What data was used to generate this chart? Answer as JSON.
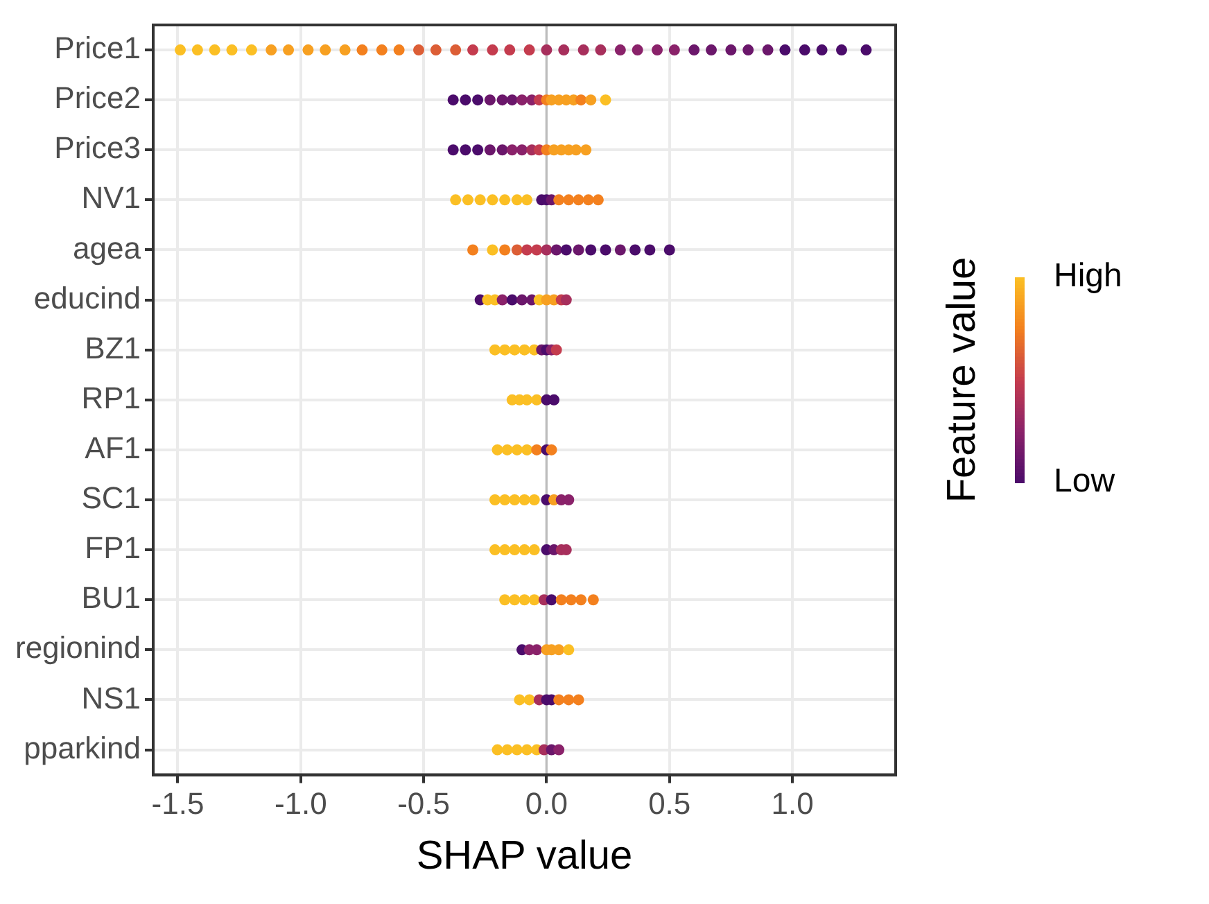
{
  "chart_data": {
    "type": "scatter",
    "orientation": "horizontal",
    "xlabel": "SHAP value",
    "clabel": "Feature value",
    "categories": [
      "Price1",
      "Price2",
      "Price3",
      "NV1",
      "agea",
      "educind",
      "BZ1",
      "RP1",
      "AF1",
      "SC1",
      "FP1",
      "BU1",
      "regionind",
      "NS1",
      "pparkind"
    ],
    "xlim": [
      -1.6,
      1.42
    ],
    "xticks": [
      {
        "value": -1.5,
        "label": "-1.5"
      },
      {
        "value": -1,
        "label": "-1.0"
      },
      {
        "value": -0.5,
        "label": "-0.5"
      },
      {
        "value": 0,
        "label": "0.0"
      },
      {
        "value": 0.5,
        "label": "0.5"
      },
      {
        "value": 1,
        "label": "1.0"
      }
    ],
    "clim": [
      0,
      1
    ],
    "cticks": [
      {
        "value": 0,
        "label": "Low"
      },
      {
        "value": 1,
        "label": "High"
      }
    ],
    "grid": true,
    "legend": false,
    "marker": "circle",
    "ref_lines": [
      {
        "axis": "x",
        "value": 0,
        "color": "#bdbdbd"
      }
    ],
    "series": [
      {
        "x": [
          "Price1",
          "Price1",
          "Price1",
          "Price1",
          "Price1",
          "Price1",
          "Price1",
          "Price1",
          "Price1",
          "Price1",
          "Price1",
          "Price1",
          "Price1",
          "Price1",
          "Price1",
          "Price1",
          "Price1",
          "Price1",
          "Price1",
          "Price1",
          "Price1",
          "Price1",
          "Price1",
          "Price1",
          "Price1",
          "Price1",
          "Price1",
          "Price1",
          "Price1",
          "Price1",
          "Price1",
          "Price1",
          "Price1",
          "Price1",
          "Price1",
          "Price1",
          "Price1",
          "Price1"
        ],
        "values": [
          -1.49,
          -1.42,
          -1.35,
          -1.28,
          -1.2,
          -1.12,
          -1.05,
          -0.97,
          -0.9,
          -0.82,
          -0.75,
          -0.67,
          -0.6,
          -0.52,
          -0.45,
          -0.37,
          -0.3,
          -0.22,
          -0.15,
          -0.07,
          0,
          0.07,
          0.15,
          0.22,
          0.3,
          0.37,
          0.45,
          0.52,
          0.6,
          0.67,
          0.75,
          0.82,
          0.9,
          0.97,
          1.05,
          1.12,
          1.2,
          1.3
        ],
        "colors": [
          "#fbbf24",
          "#fbbf24",
          "#fbbf24",
          "#fbbf24",
          "#fbbf24",
          "#f7a021",
          "#f7a021",
          "#f7a021",
          "#f7a021",
          "#f7a021",
          "#f3801e",
          "#f3801e",
          "#f3801e",
          "#dc5e36",
          "#dc5e36",
          "#dc5e36",
          "#c43c4e",
          "#c43c4e",
          "#c43c4e",
          "#c43c4e",
          "#a72f5c",
          "#a72f5c",
          "#a72f5c",
          "#a72f5c",
          "#8a226a",
          "#8a226a",
          "#8a226a",
          "#8a226a",
          "#6b176b",
          "#6b176b",
          "#6b176b",
          "#6b176b",
          "#6b176b",
          "#4b0c6b",
          "#4b0c6b",
          "#4b0c6b",
          "#4b0c6b",
          "#4b0c6b"
        ]
      },
      {
        "x": [
          "Price2",
          "Price2",
          "Price2",
          "Price2",
          "Price2",
          "Price2",
          "Price2",
          "Price2",
          "Price2",
          "Price2",
          "Price2",
          "Price2",
          "Price2",
          "Price2",
          "Price2",
          "Price2",
          "Price2"
        ],
        "values": [
          -0.38,
          -0.33,
          -0.28,
          -0.23,
          -0.18,
          -0.14,
          -0.1,
          -0.06,
          -0.03,
          0,
          0.02,
          0.05,
          0.08,
          0.11,
          0.14,
          0.18,
          0.24
        ],
        "colors": [
          "#4b0c6b",
          "#4b0c6b",
          "#4b0c6b",
          "#6b176b",
          "#6b176b",
          "#6b176b",
          "#8a226a",
          "#8a226a",
          "#c43c4e",
          "#f3801e",
          "#f7a021",
          "#f7a021",
          "#f7a021",
          "#f7a021",
          "#f3801e",
          "#f7a021",
          "#fbbf24"
        ]
      },
      {
        "x": [
          "Price3",
          "Price3",
          "Price3",
          "Price3",
          "Price3",
          "Price3",
          "Price3",
          "Price3",
          "Price3",
          "Price3",
          "Price3",
          "Price3",
          "Price3",
          "Price3",
          "Price3"
        ],
        "values": [
          -0.38,
          -0.33,
          -0.28,
          -0.23,
          -0.18,
          -0.14,
          -0.1,
          -0.06,
          -0.03,
          0,
          0.03,
          0.06,
          0.09,
          0.12,
          0.16
        ],
        "colors": [
          "#4b0c6b",
          "#4b0c6b",
          "#4b0c6b",
          "#6b176b",
          "#6b176b",
          "#8a226a",
          "#8a226a",
          "#a72f5c",
          "#c43c4e",
          "#f3801e",
          "#f7a021",
          "#f7a021",
          "#f7a021",
          "#f7a021",
          "#f7a021"
        ]
      },
      {
        "x": [
          "NV1",
          "NV1",
          "NV1",
          "NV1",
          "NV1",
          "NV1",
          "NV1",
          "NV1",
          "NV1",
          "NV1",
          "NV1",
          "NV1",
          "NV1",
          "NV1",
          "NV1"
        ],
        "values": [
          -0.37,
          -0.32,
          -0.27,
          -0.22,
          -0.17,
          -0.12,
          -0.08,
          -0.02,
          0,
          0.02,
          0.05,
          0.09,
          0.13,
          0.17,
          0.21
        ],
        "colors": [
          "#fbbf24",
          "#fbbf24",
          "#fbbf24",
          "#fbbf24",
          "#fbbf24",
          "#fbbf24",
          "#fbbf24",
          "#4b0c6b",
          "#4b0c6b",
          "#6b176b",
          "#f3801e",
          "#f3801e",
          "#f3801e",
          "#f3801e",
          "#f3801e"
        ]
      },
      {
        "x": [
          "agea",
          "agea",
          "agea",
          "agea",
          "agea",
          "agea",
          "agea",
          "agea",
          "agea",
          "agea",
          "agea",
          "agea",
          "agea",
          "agea",
          "agea",
          "agea"
        ],
        "values": [
          -0.3,
          -0.22,
          -0.17,
          -0.12,
          -0.08,
          -0.04,
          0,
          0.04,
          0.08,
          0.13,
          0.18,
          0.24,
          0.3,
          0.36,
          0.42,
          0.5
        ],
        "colors": [
          "#f3801e",
          "#fbbf24",
          "#f3801e",
          "#dc5e36",
          "#c43c4e",
          "#c43c4e",
          "#a72f5c",
          "#6b176b",
          "#4b0c6b",
          "#6b176b",
          "#4b0c6b",
          "#4b0c6b",
          "#6b176b",
          "#4b0c6b",
          "#4b0c6b",
          "#4b0c6b"
        ]
      },
      {
        "x": [
          "educind",
          "educind",
          "educind",
          "educind",
          "educind",
          "educind",
          "educind",
          "educind",
          "educind",
          "educind",
          "educind",
          "educind"
        ],
        "values": [
          -0.27,
          -0.24,
          -0.21,
          -0.18,
          -0.14,
          -0.1,
          -0.06,
          -0.03,
          0,
          0.03,
          0.06,
          0.08
        ],
        "colors": [
          "#4b0c6b",
          "#fbbf24",
          "#fbbf24",
          "#8a226a",
          "#4b0c6b",
          "#6b176b",
          "#6b176b",
          "#fbbf24",
          "#f7a021",
          "#f7a021",
          "#c43c4e",
          "#a72f5c"
        ]
      },
      {
        "x": [
          "BZ1",
          "BZ1",
          "BZ1",
          "BZ1",
          "BZ1",
          "BZ1",
          "BZ1",
          "BZ1",
          "BZ1"
        ],
        "values": [
          -0.21,
          -0.17,
          -0.13,
          -0.09,
          -0.05,
          -0.02,
          0,
          0.02,
          0.04
        ],
        "colors": [
          "#fbbf24",
          "#fbbf24",
          "#fbbf24",
          "#fbbf24",
          "#fbbf24",
          "#6b176b",
          "#4b0c6b",
          "#8a226a",
          "#c43c4e"
        ]
      },
      {
        "x": [
          "RP1",
          "RP1",
          "RP1",
          "RP1",
          "RP1",
          "RP1"
        ],
        "values": [
          -0.14,
          -0.11,
          -0.08,
          -0.04,
          0,
          0.03
        ],
        "colors": [
          "#fbbf24",
          "#fbbf24",
          "#fbbf24",
          "#fbbf24",
          "#4b0c6b",
          "#4b0c6b"
        ]
      },
      {
        "x": [
          "AF1",
          "AF1",
          "AF1",
          "AF1",
          "AF1",
          "AF1",
          "AF1"
        ],
        "values": [
          -0.2,
          -0.16,
          -0.12,
          -0.08,
          -0.04,
          0,
          0.02
        ],
        "colors": [
          "#fbbf24",
          "#fbbf24",
          "#fbbf24",
          "#fbbf24",
          "#f3801e",
          "#4b0c6b",
          "#f3801e"
        ]
      },
      {
        "x": [
          "SC1",
          "SC1",
          "SC1",
          "SC1",
          "SC1",
          "SC1",
          "SC1",
          "SC1",
          "SC1"
        ],
        "values": [
          -0.21,
          -0.17,
          -0.13,
          -0.09,
          -0.05,
          0,
          0.03,
          0.06,
          0.09
        ],
        "colors": [
          "#fbbf24",
          "#fbbf24",
          "#fbbf24",
          "#fbbf24",
          "#fbbf24",
          "#4b0c6b",
          "#f7a021",
          "#8a226a",
          "#8a226a"
        ]
      },
      {
        "x": [
          "FP1",
          "FP1",
          "FP1",
          "FP1",
          "FP1",
          "FP1",
          "FP1",
          "FP1",
          "FP1"
        ],
        "values": [
          -0.21,
          -0.17,
          -0.13,
          -0.09,
          -0.05,
          0,
          0.03,
          0.06,
          0.08
        ],
        "colors": [
          "#fbbf24",
          "#fbbf24",
          "#fbbf24",
          "#fbbf24",
          "#fbbf24",
          "#4b0c6b",
          "#6b176b",
          "#a72f5c",
          "#a72f5c"
        ]
      },
      {
        "x": [
          "BU1",
          "BU1",
          "BU1",
          "BU1",
          "BU1",
          "BU1",
          "BU1",
          "BU1",
          "BU1",
          "BU1"
        ],
        "values": [
          -0.17,
          -0.13,
          -0.09,
          -0.05,
          -0.01,
          0.02,
          0.06,
          0.1,
          0.14,
          0.19
        ],
        "colors": [
          "#fbbf24",
          "#fbbf24",
          "#fbbf24",
          "#fbbf24",
          "#a72f5c",
          "#4b0c6b",
          "#f3801e",
          "#f3801e",
          "#f3801e",
          "#f3801e"
        ]
      },
      {
        "x": [
          "regionind",
          "regionind",
          "regionind",
          "regionind",
          "regionind",
          "regionind",
          "regionind"
        ],
        "values": [
          -0.1,
          -0.07,
          -0.04,
          0,
          0.02,
          0.05,
          0.09
        ],
        "colors": [
          "#4b0c6b",
          "#8a226a",
          "#8a226a",
          "#f7a021",
          "#f7a021",
          "#f7a021",
          "#fbbf24"
        ]
      },
      {
        "x": [
          "NS1",
          "NS1",
          "NS1",
          "NS1",
          "NS1",
          "NS1",
          "NS1",
          "NS1"
        ],
        "values": [
          -0.11,
          -0.07,
          -0.03,
          0,
          0.02,
          0.05,
          0.09,
          0.13
        ],
        "colors": [
          "#fbbf24",
          "#fbbf24",
          "#a72f5c",
          "#4b0c6b",
          "#4b0c6b",
          "#f3801e",
          "#f3801e",
          "#f3801e"
        ]
      },
      {
        "x": [
          "pparkind",
          "pparkind",
          "pparkind",
          "pparkind",
          "pparkind",
          "pparkind",
          "pparkind",
          "pparkind"
        ],
        "values": [
          -0.2,
          -0.16,
          -0.12,
          -0.08,
          -0.04,
          -0.01,
          0.02,
          0.05
        ],
        "colors": [
          "#fbbf24",
          "#fbbf24",
          "#fbbf24",
          "#fbbf24",
          "#fbbf24",
          "#a72f5c",
          "#6b176b",
          "#8a226a"
        ]
      }
    ]
  }
}
